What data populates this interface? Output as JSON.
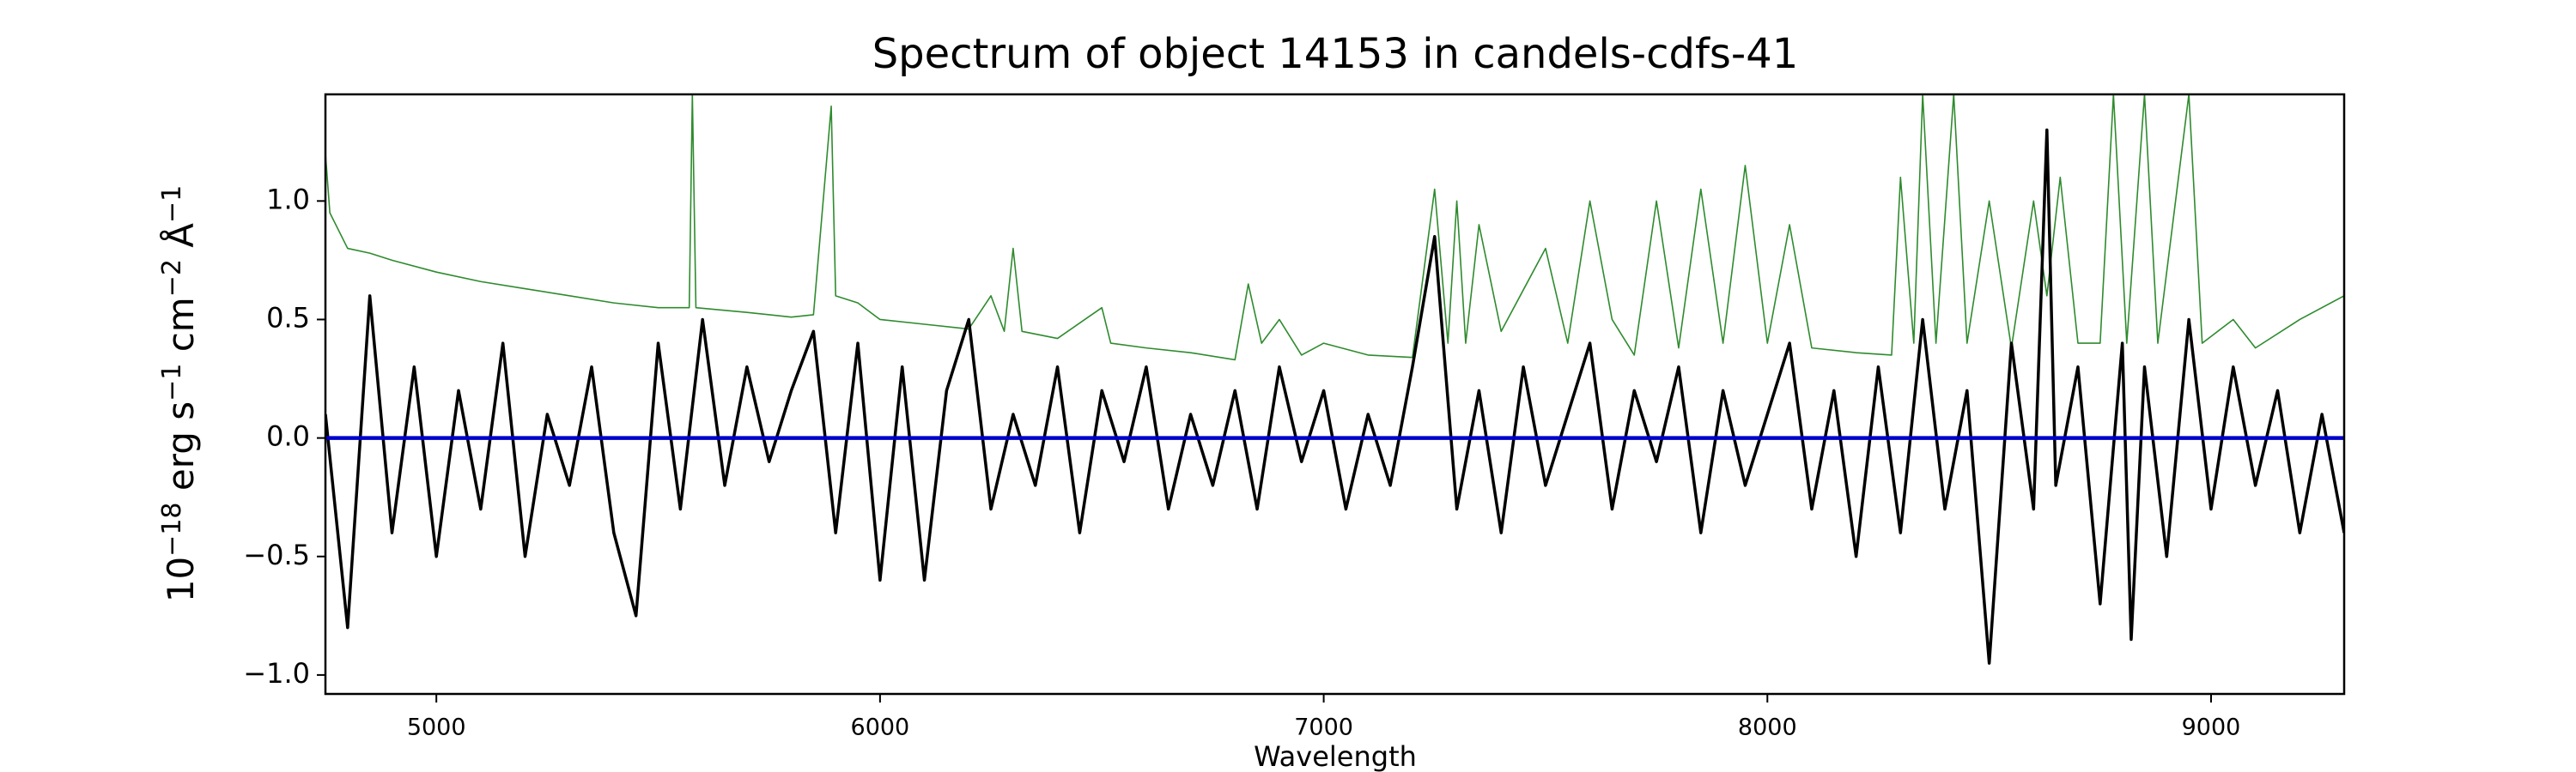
{
  "chart_data": {
    "type": "line",
    "title": "Spectrum of object 14153 in candels-cdfs-41",
    "xlabel": "Wavelength",
    "ylabel_parts": [
      "10",
      "−18",
      " erg s",
      "−1",
      " cm",
      "−2",
      " Å",
      "−1"
    ],
    "xlim": [
      4750,
      9300
    ],
    "ylim": [
      -1.08,
      1.45
    ],
    "xticks": [
      5000,
      6000,
      7000,
      8000,
      9000
    ],
    "yticks": [
      {
        "value": -1,
        "label": "−1.0"
      },
      {
        "value": -0.5,
        "label": "−0.5"
      },
      {
        "value": 0,
        "label": "0.0"
      },
      {
        "value": 0.5,
        "label": "0.5"
      },
      {
        "value": 1,
        "label": "1.0"
      }
    ],
    "series": [
      {
        "color": "#2e8b2e",
        "width": 1.6,
        "x": [
          4750,
          4760,
          4800,
          4850,
          4900,
          5000,
          5100,
          5200,
          5300,
          5400,
          5500,
          5570,
          5577,
          5585,
          5700,
          5800,
          5850,
          5890,
          5900,
          5950,
          6000,
          6100,
          6200,
          6250,
          6280,
          6300,
          6320,
          6400,
          6500,
          6520,
          6600,
          6700,
          6800,
          6830,
          6860,
          6900,
          6950,
          7000,
          7100,
          7200,
          7250,
          7280,
          7300,
          7320,
          7350,
          7400,
          7500,
          7550,
          7600,
          7650,
          7700,
          7750,
          7800,
          7850,
          7900,
          7950,
          8000,
          8050,
          8100,
          8200,
          8280,
          8300,
          8330,
          8350,
          8380,
          8420,
          8450,
          8500,
          8550,
          8600,
          8630,
          8660,
          8700,
          8750,
          8780,
          8810,
          8850,
          8880,
          8950,
          8980,
          9050,
          9100,
          9200,
          9300
        ],
        "values": [
          1.2,
          0.95,
          0.8,
          0.78,
          0.75,
          0.7,
          0.66,
          0.63,
          0.6,
          0.57,
          0.55,
          0.55,
          1.45,
          0.55,
          0.53,
          0.51,
          0.52,
          1.4,
          0.6,
          0.57,
          0.5,
          0.48,
          0.46,
          0.6,
          0.45,
          0.8,
          0.45,
          0.42,
          0.55,
          0.4,
          0.38,
          0.36,
          0.33,
          0.65,
          0.4,
          0.5,
          0.35,
          0.4,
          0.35,
          0.34,
          1.05,
          0.4,
          1.0,
          0.4,
          0.9,
          0.45,
          0.8,
          0.4,
          1.0,
          0.5,
          0.35,
          1.0,
          0.38,
          1.05,
          0.4,
          1.15,
          0.4,
          0.9,
          0.38,
          0.36,
          0.35,
          1.1,
          0.4,
          1.45,
          0.4,
          1.45,
          0.4,
          1.0,
          0.38,
          1.0,
          0.6,
          1.1,
          0.4,
          0.4,
          1.45,
          0.4,
          1.45,
          0.4,
          1.45,
          0.4,
          0.5,
          0.38,
          0.5,
          0.6
        ]
      },
      {
        "color": "#000000",
        "width": 3.5,
        "x": [
          4750,
          4800,
          4850,
          4900,
          4950,
          5000,
          5050,
          5100,
          5150,
          5200,
          5250,
          5300,
          5350,
          5400,
          5450,
          5500,
          5550,
          5600,
          5650,
          5700,
          5750,
          5800,
          5850,
          5900,
          5950,
          6000,
          6050,
          6100,
          6150,
          6200,
          6250,
          6300,
          6350,
          6400,
          6450,
          6500,
          6550,
          6600,
          6650,
          6700,
          6750,
          6800,
          6850,
          6900,
          6950,
          7000,
          7050,
          7100,
          7150,
          7200,
          7250,
          7300,
          7350,
          7400,
          7450,
          7500,
          7550,
          7600,
          7650,
          7700,
          7750,
          7800,
          7850,
          7900,
          7950,
          8000,
          8050,
          8100,
          8150,
          8200,
          8250,
          8300,
          8350,
          8400,
          8450,
          8500,
          8550,
          8600,
          8630,
          8650,
          8700,
          8750,
          8800,
          8820,
          8850,
          8900,
          8950,
          9000,
          9050,
          9100,
          9150,
          9200,
          9250,
          9300
        ],
        "values": [
          0.1,
          -0.8,
          0.6,
          -0.4,
          0.3,
          -0.5,
          0.2,
          -0.3,
          0.4,
          -0.5,
          0.1,
          -0.2,
          0.3,
          -0.4,
          -0.75,
          0.4,
          -0.3,
          0.5,
          -0.2,
          0.3,
          -0.1,
          0.2,
          0.45,
          -0.4,
          0.4,
          -0.6,
          0.3,
          -0.6,
          0.2,
          0.5,
          -0.3,
          0.1,
          -0.2,
          0.3,
          -0.4,
          0.2,
          -0.1,
          0.3,
          -0.3,
          0.1,
          -0.2,
          0.2,
          -0.3,
          0.3,
          -0.1,
          0.2,
          -0.3,
          0.1,
          -0.2,
          0.3,
          0.85,
          -0.3,
          0.2,
          -0.4,
          0.3,
          -0.2,
          0.1,
          0.4,
          -0.3,
          0.2,
          -0.1,
          0.3,
          -0.4,
          0.2,
          -0.2,
          0.1,
          0.4,
          -0.3,
          0.2,
          -0.5,
          0.3,
          -0.4,
          0.5,
          -0.3,
          0.2,
          -0.95,
          0.4,
          -0.3,
          1.3,
          -0.2,
          0.3,
          -0.7,
          0.4,
          -0.85,
          0.3,
          -0.5,
          0.5,
          -0.3,
          0.3,
          -0.2,
          0.2,
          -0.4,
          0.1,
          -0.4
        ]
      },
      {
        "color": "#0000cc",
        "width": 4.5,
        "x": [
          4750,
          9300
        ],
        "values": [
          0,
          0
        ]
      }
    ]
  }
}
